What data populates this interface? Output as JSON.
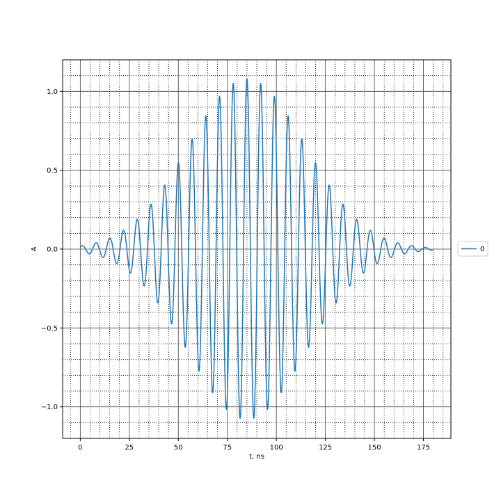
{
  "chart_data": {
    "type": "line",
    "xlabel": "t, ns",
    "ylabel": "A",
    "xlim": [
      -9,
      189
    ],
    "ylim": [
      -1.2,
      1.2
    ],
    "x_ticks": [
      0,
      25,
      50,
      75,
      100,
      125,
      150,
      175
    ],
    "x_tick_labels": [
      "0",
      "25",
      "50",
      "75",
      "100",
      "125",
      "150",
      "175"
    ],
    "y_ticks": [
      -1.0,
      -0.5,
      0.0,
      0.5,
      1.0
    ],
    "y_tick_labels": [
      "−1.0",
      "−0.5",
      "0.0",
      "0.5",
      "1.0"
    ],
    "grid": {
      "major": true,
      "minor": true,
      "minor_style": "dotted"
    },
    "legend": {
      "placement": "right, outside axes",
      "entries": [
        "0"
      ]
    },
    "series": [
      {
        "name": "0",
        "color": "#1f77b4",
        "signal": {
          "form": "gaussian-windowed cosine",
          "t_start": 0,
          "t_end": 180,
          "center": 85,
          "peak_amplitude": 1.08,
          "carrier_period": 7.0,
          "envelope_sigma": 30
        }
      }
    ]
  }
}
